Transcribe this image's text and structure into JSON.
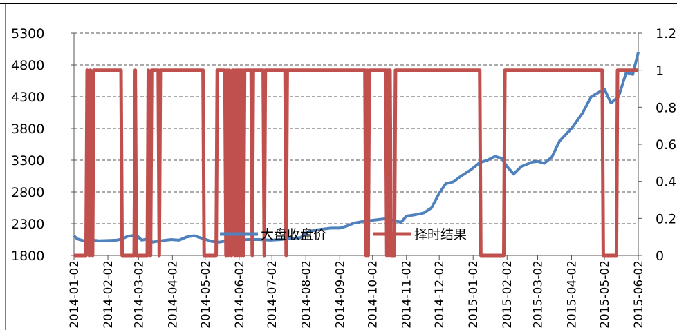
{
  "chart_data": {
    "type": "line",
    "title": "",
    "y_left": {
      "ticks": [
        "1800",
        "2300",
        "2800",
        "3300",
        "3800",
        "4300",
        "4800",
        "5300"
      ],
      "ylim": [
        1800,
        5300
      ]
    },
    "y_right": {
      "ticks": [
        "0",
        "0.2",
        "0.4",
        "0.6",
        "0.8",
        "1",
        "1.2"
      ],
      "ylim": [
        0,
        1.2
      ]
    },
    "x_labels": [
      "2014-01-02",
      "2014-02-02",
      "2014-03-02",
      "2014-04-02",
      "2014-05-02",
      "2014-06-02",
      "2014-07-02",
      "2014-08-02",
      "2014-09-02",
      "2014-10-02",
      "2014-11-02",
      "2014-12-02",
      "2015-01-02",
      "2015-02-02",
      "2015-03-02",
      "2015-04-02",
      "2015-05-02",
      "2015-06-02"
    ],
    "xlim": [
      "2014-01-02",
      "2015-06-02"
    ],
    "grid": true,
    "legend": "bottom",
    "colors": {
      "index": "#4F81BD",
      "signal": "#C0504D"
    },
    "series": [
      {
        "name": "大盘收盘价",
        "axis": "left",
        "points": [
          [
            "2014-01-02",
            2110
          ],
          [
            "2014-01-05",
            2060
          ],
          [
            "2014-01-10",
            2035
          ],
          [
            "2014-01-15",
            2020
          ],
          [
            "2014-01-20",
            2040
          ],
          [
            "2014-01-25",
            2030
          ],
          [
            "2014-02-02",
            2035
          ],
          [
            "2014-02-10",
            2040
          ],
          [
            "2014-02-15",
            2060
          ],
          [
            "2014-02-20",
            2100
          ],
          [
            "2014-02-28",
            2120
          ],
          [
            "2014-03-05",
            2040
          ],
          [
            "2014-03-10",
            2060
          ],
          [
            "2014-03-15",
            2010
          ],
          [
            "2014-03-22",
            2030
          ],
          [
            "2014-04-01",
            2050
          ],
          [
            "2014-04-08",
            2040
          ],
          [
            "2014-04-15",
            2090
          ],
          [
            "2014-04-22",
            2110
          ],
          [
            "2014-05-01",
            2060
          ],
          [
            "2014-05-08",
            2020
          ],
          [
            "2014-05-15",
            2010
          ],
          [
            "2014-05-22",
            2030
          ],
          [
            "2014-06-01",
            2040
          ],
          [
            "2014-06-10",
            2050
          ],
          [
            "2014-06-20",
            2050
          ],
          [
            "2014-07-01",
            2040
          ],
          [
            "2014-07-10",
            2050
          ],
          [
            "2014-07-20",
            2070
          ],
          [
            "2014-07-28",
            2080
          ],
          [
            "2014-08-05",
            2180
          ],
          [
            "2014-08-15",
            2210
          ],
          [
            "2014-08-25",
            2230
          ],
          [
            "2014-09-02",
            2230
          ],
          [
            "2014-09-08",
            2260
          ],
          [
            "2014-09-15",
            2310
          ],
          [
            "2014-09-25",
            2340
          ],
          [
            "2014-10-05",
            2360
          ],
          [
            "2014-10-15",
            2380
          ],
          [
            "2014-10-22",
            2350
          ],
          [
            "2014-10-28",
            2320
          ],
          [
            "2014-11-02",
            2420
          ],
          [
            "2014-11-10",
            2440
          ],
          [
            "2014-11-18",
            2470
          ],
          [
            "2014-11-25",
            2550
          ],
          [
            "2014-12-02",
            2780
          ],
          [
            "2014-12-08",
            2930
          ],
          [
            "2014-12-15",
            2960
          ],
          [
            "2014-12-22",
            3050
          ],
          [
            "2014-12-31",
            3150
          ],
          [
            "2015-01-08",
            3260
          ],
          [
            "2015-01-15",
            3300
          ],
          [
            "2015-01-22",
            3360
          ],
          [
            "2015-01-28",
            3330
          ],
          [
            "2015-02-02",
            3200
          ],
          [
            "2015-02-08",
            3080
          ],
          [
            "2015-02-15",
            3200
          ],
          [
            "2015-02-25",
            3270
          ],
          [
            "2015-03-02",
            3280
          ],
          [
            "2015-03-08",
            3250
          ],
          [
            "2015-03-15",
            3350
          ],
          [
            "2015-03-22",
            3600
          ],
          [
            "2015-04-02",
            3800
          ],
          [
            "2015-04-12",
            4040
          ],
          [
            "2015-04-20",
            4300
          ],
          [
            "2015-05-02",
            4420
          ],
          [
            "2015-05-08",
            4200
          ],
          [
            "2015-05-15",
            4300
          ],
          [
            "2015-05-22",
            4680
          ],
          [
            "2015-05-28",
            4650
          ],
          [
            "2015-06-02",
            5000
          ]
        ]
      },
      {
        "name": "择时结果",
        "axis": "right",
        "points": [
          [
            "2014-01-02",
            0
          ],
          [
            "2014-01-13",
            0
          ],
          [
            "2014-01-14",
            1
          ],
          [
            "2014-01-16",
            0
          ],
          [
            "2014-01-17",
            1
          ],
          [
            "2014-01-19",
            0
          ],
          [
            "2014-01-20",
            1
          ],
          [
            "2014-02-14",
            1
          ],
          [
            "2014-02-15",
            0
          ],
          [
            "2014-02-26",
            0
          ],
          [
            "2014-02-27",
            1
          ],
          [
            "2014-02-28",
            0
          ],
          [
            "2014-03-10",
            0
          ],
          [
            "2014-03-11",
            1
          ],
          [
            "2014-03-13",
            0
          ],
          [
            "2014-03-14",
            1
          ],
          [
            "2014-03-20",
            1
          ],
          [
            "2014-03-21",
            0
          ],
          [
            "2014-03-22",
            1
          ],
          [
            "2014-04-30",
            1
          ],
          [
            "2014-05-01",
            0
          ],
          [
            "2014-05-12",
            0
          ],
          [
            "2014-05-13",
            1
          ],
          [
            "2014-05-20",
            1
          ],
          [
            "2014-05-21",
            0
          ],
          [
            "2014-05-22",
            1
          ],
          [
            "2014-05-23",
            0
          ],
          [
            "2014-05-24",
            1
          ],
          [
            "2014-05-26",
            0
          ],
          [
            "2014-05-27",
            1
          ],
          [
            "2014-05-28",
            1
          ],
          [
            "2014-05-29",
            0
          ],
          [
            "2014-05-30",
            1
          ],
          [
            "2014-05-31",
            0
          ],
          [
            "2014-06-01",
            1
          ],
          [
            "2014-06-02",
            0
          ],
          [
            "2014-06-03",
            1
          ],
          [
            "2014-06-04",
            0
          ],
          [
            "2014-06-05",
            1
          ],
          [
            "2014-06-06",
            0
          ],
          [
            "2014-06-07",
            1
          ],
          [
            "2014-06-13",
            1
          ],
          [
            "2014-06-14",
            0
          ],
          [
            "2014-06-15",
            1
          ],
          [
            "2014-06-24",
            1
          ],
          [
            "2014-06-25",
            0
          ],
          [
            "2014-06-26",
            1
          ],
          [
            "2014-07-14",
            1
          ],
          [
            "2014-07-15",
            0
          ],
          [
            "2014-07-16",
            1
          ],
          [
            "2014-09-25",
            1
          ],
          [
            "2014-09-26",
            0
          ],
          [
            "2014-09-27",
            1
          ],
          [
            "2014-09-28",
            0
          ],
          [
            "2014-09-29",
            1
          ],
          [
            "2014-10-14",
            1
          ],
          [
            "2014-10-15",
            0
          ],
          [
            "2014-10-16",
            1
          ],
          [
            "2014-10-17",
            0
          ],
          [
            "2014-10-18",
            1
          ],
          [
            "2014-10-19",
            0
          ],
          [
            "2014-10-22",
            0
          ],
          [
            "2014-10-23",
            1
          ],
          [
            "2015-01-08",
            1
          ],
          [
            "2015-01-09",
            0
          ],
          [
            "2015-01-30",
            0
          ],
          [
            "2015-01-31",
            1
          ],
          [
            "2015-04-30",
            1
          ],
          [
            "2015-05-01",
            0
          ],
          [
            "2015-05-13",
            0
          ],
          [
            "2015-05-14",
            1
          ],
          [
            "2015-06-02",
            1
          ]
        ]
      }
    ]
  }
}
